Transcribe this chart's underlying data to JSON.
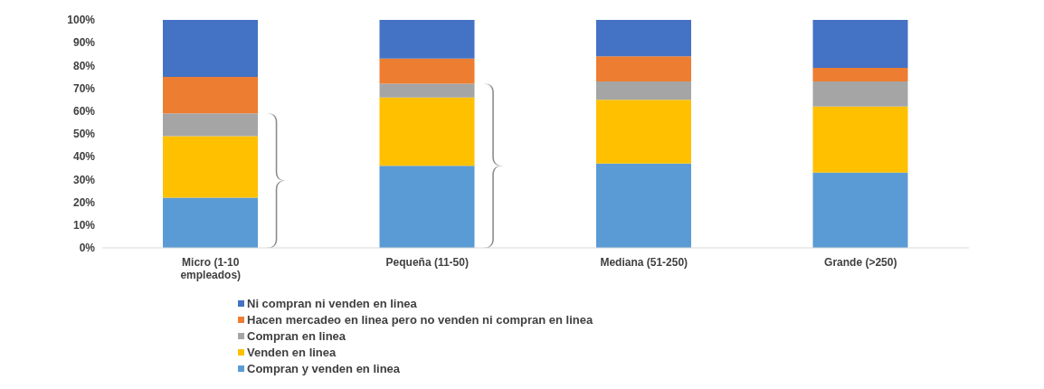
{
  "chart_data": {
    "type": "bar",
    "stacked": true,
    "categories": [
      "Micro (1-10 empleados)",
      "Pequeña (11-50)",
      "Mediana (51-250)",
      "Grande (>250)"
    ],
    "series": [
      {
        "name": "Compran y venden en linea",
        "color": "#5b9bd5",
        "values": [
          22,
          36,
          37,
          33
        ]
      },
      {
        "name": "Venden en linea",
        "color": "#ffc000",
        "values": [
          27,
          30,
          28,
          29
        ]
      },
      {
        "name": "Compran en linea",
        "color": "#a5a5a5",
        "values": [
          10,
          6,
          8,
          11
        ]
      },
      {
        "name": "Hacen mercadeo en linea pero no venden ni compran en linea",
        "color": "#ed7d31",
        "values": [
          16,
          11,
          11,
          6
        ]
      },
      {
        "name": "Ni compran ni venden en linea",
        "color": "#4472c4",
        "values": [
          25,
          17,
          16,
          21
        ]
      }
    ],
    "ylim": [
      0,
      100
    ],
    "yticks": [
      {
        "value": 0,
        "label": "0%"
      },
      {
        "value": 10,
        "label": "10%"
      },
      {
        "value": 20,
        "label": "20%"
      },
      {
        "value": 30,
        "label": "30%"
      },
      {
        "value": 40,
        "label": "40%"
      },
      {
        "value": 50,
        "label": "50%"
      },
      {
        "value": 60,
        "label": "60%"
      },
      {
        "value": 70,
        "label": "70%"
      },
      {
        "value": 80,
        "label": "80%"
      },
      {
        "value": 90,
        "label": "90%"
      },
      {
        "value": 100,
        "label": "100%"
      }
    ],
    "grid": false,
    "legend": "bottom"
  }
}
